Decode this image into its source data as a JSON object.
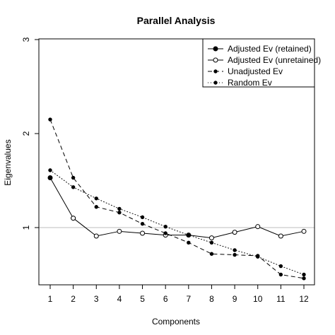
{
  "chart_data": {
    "type": "line",
    "title": "Parallel Analysis",
    "xlabel": "Components",
    "ylabel": "Eigenvalues",
    "xlim": [
      1,
      12
    ],
    "ylim": [
      0.5,
      3
    ],
    "x_ticks": [
      1,
      2,
      3,
      4,
      5,
      6,
      7,
      8,
      9,
      10,
      11,
      12
    ],
    "y_ticks": [
      1,
      2,
      3
    ],
    "reference_line": {
      "y": 1,
      "color": "#bdbdbd"
    },
    "legend_position": "top-right",
    "series": [
      {
        "name": "Adjusted Ev (retained)",
        "line": "solid",
        "marker": "filled-circle",
        "x": [
          1,
          2
        ],
        "values": [
          1.53,
          1.1
        ]
      },
      {
        "name": "Adjusted Ev (unretained)",
        "line": "solid",
        "marker": "open-circle",
        "x": [
          2,
          3,
          4,
          5,
          6,
          7,
          8,
          9,
          10,
          11,
          12
        ],
        "values": [
          1.1,
          0.91,
          0.96,
          0.94,
          0.92,
          0.92,
          0.89,
          0.95,
          1.01,
          0.91,
          0.96
        ]
      },
      {
        "name": "Unadjusted Ev",
        "line": "dashed",
        "marker": "small-filled-circle",
        "x": [
          1,
          2,
          3,
          4,
          5,
          6,
          7,
          8,
          9,
          10,
          11,
          12
        ],
        "values": [
          2.15,
          1.53,
          1.22,
          1.16,
          1.04,
          0.94,
          0.84,
          0.72,
          0.71,
          0.7,
          0.5,
          0.46
        ]
      },
      {
        "name": "Random Ev",
        "line": "dotted",
        "marker": "small-filled-circle",
        "x": [
          1,
          2,
          3,
          4,
          5,
          6,
          7,
          8,
          9,
          10,
          11,
          12
        ],
        "values": [
          1.61,
          1.43,
          1.31,
          1.2,
          1.11,
          1.01,
          0.92,
          0.84,
          0.76,
          0.69,
          0.59,
          0.5
        ]
      }
    ]
  }
}
